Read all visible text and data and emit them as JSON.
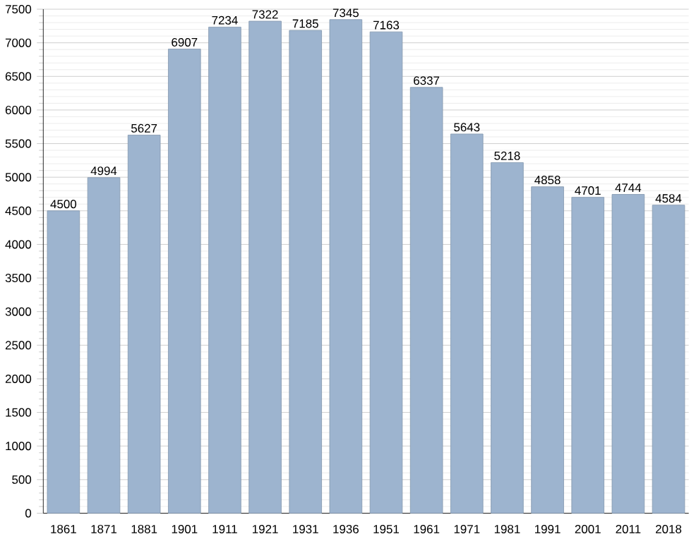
{
  "chart_data": {
    "type": "bar",
    "categories": [
      "1861",
      "1871",
      "1881",
      "1901",
      "1911",
      "1921",
      "1931",
      "1936",
      "1951",
      "1961",
      "1971",
      "1981",
      "1991",
      "2001",
      "2011",
      "2018"
    ],
    "values": [
      4500,
      4994,
      5627,
      6907,
      7234,
      7322,
      7185,
      7345,
      7163,
      6337,
      5643,
      5218,
      4858,
      4701,
      4744,
      4584
    ],
    "color": "#9db4cf",
    "ylim": [
      0,
      7500
    ],
    "yticks": [
      0,
      500,
      1000,
      1500,
      2000,
      2500,
      3000,
      3500,
      4000,
      4500,
      5000,
      5500,
      6000,
      6500,
      7000,
      7500
    ],
    "grid": "y",
    "data_labels": true
  }
}
